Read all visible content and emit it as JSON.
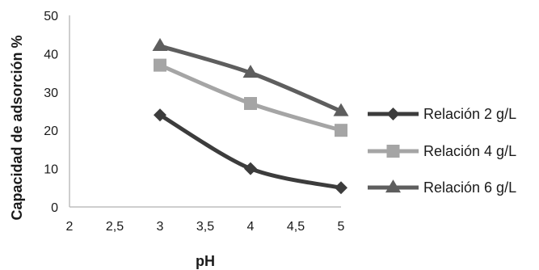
{
  "chart_data": {
    "type": "line",
    "xlabel": "pH",
    "ylabel": "Capacidad de adsorción %",
    "xlim": [
      2,
      5
    ],
    "ylim": [
      0,
      50
    ],
    "x_ticks": [
      "2",
      "2,5",
      "3",
      "3,5",
      "4",
      "4,5",
      "5"
    ],
    "y_ticks": [
      "0",
      "10",
      "20",
      "30",
      "40",
      "50"
    ],
    "grid": false,
    "legend_position": "right",
    "series": [
      {
        "name": "Relación 2 g/L",
        "marker": "diamond",
        "color": "#3c3c3c",
        "x": [
          3,
          4,
          5
        ],
        "y": [
          24,
          10,
          5
        ]
      },
      {
        "name": "Relación 4 g/L",
        "marker": "square",
        "color": "#a5a5a5",
        "x": [
          3,
          4,
          5
        ],
        "y": [
          37,
          27,
          20
        ]
      },
      {
        "name": "Relación 6 g/L",
        "marker": "triangle",
        "color": "#5e5e5e",
        "x": [
          3,
          4,
          5
        ],
        "y": [
          42,
          35,
          25
        ]
      }
    ]
  }
}
